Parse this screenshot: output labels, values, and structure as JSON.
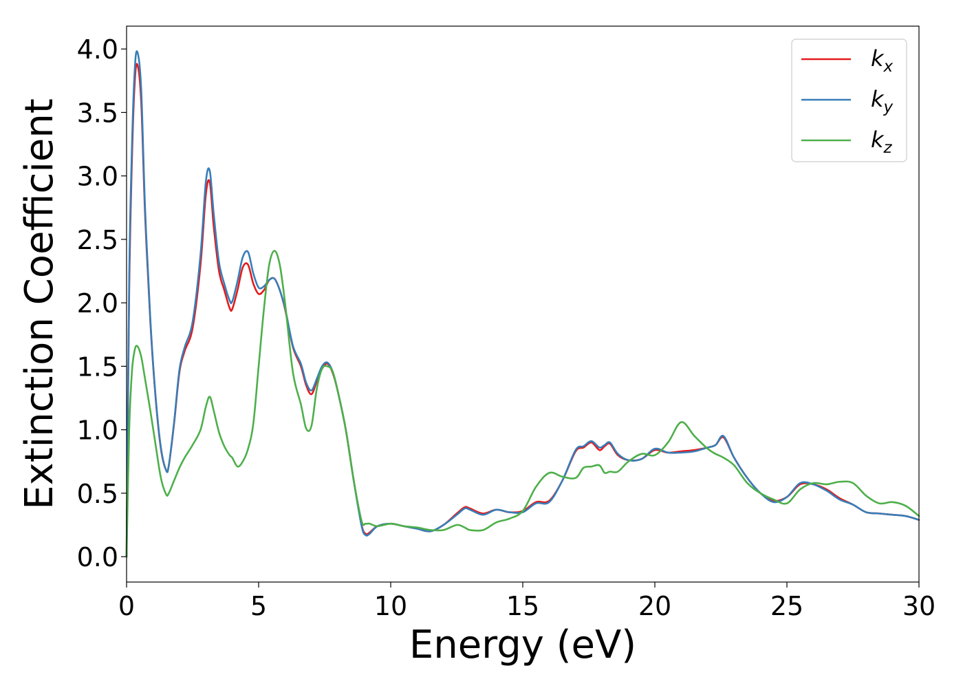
{
  "chart_data": {
    "type": "line",
    "title": "",
    "xlabel": "Energy (eV)",
    "ylabel": "Extinction Coefficient",
    "xlim": [
      0,
      30
    ],
    "ylim": [
      -0.2,
      4.18
    ],
    "xticks": [
      0,
      5,
      10,
      15,
      20,
      25,
      30
    ],
    "xtick_labels": [
      "0",
      "5",
      "10",
      "15",
      "20",
      "25",
      "30"
    ],
    "yticks": [
      0.0,
      0.5,
      1.0,
      1.5,
      2.0,
      2.5,
      3.0,
      3.5,
      4.0
    ],
    "ytick_labels": [
      "0.0",
      "0.5",
      "1.0",
      "1.5",
      "2.0",
      "2.5",
      "3.0",
      "3.5",
      "4.0"
    ],
    "grid": false,
    "legend_position": "top-right",
    "series": [
      {
        "name": "k",
        "subscript": "x",
        "color": "#e41a1c",
        "x": [
          0,
          0.1,
          0.2,
          0.3,
          0.4,
          0.55,
          0.7,
          0.9,
          1.1,
          1.3,
          1.5,
          1.6,
          1.8,
          2.0,
          2.2,
          2.5,
          2.8,
          3.0,
          3.15,
          3.3,
          3.5,
          3.7,
          3.9,
          4.0,
          4.2,
          4.4,
          4.6,
          4.8,
          5.0,
          5.2,
          5.4,
          5.6,
          5.8,
          6.0,
          6.3,
          6.6,
          6.8,
          7.0,
          7.2,
          7.4,
          7.6,
          7.8,
          8.0,
          8.3,
          8.6,
          8.9,
          9.05,
          9.2,
          9.5,
          10.0,
          10.5,
          11.0,
          11.5,
          12.0,
          12.5,
          12.8,
          13.0,
          13.5,
          14.0,
          14.5,
          15.0,
          15.5,
          16.0,
          16.5,
          17.0,
          17.3,
          17.6,
          17.9,
          18.1,
          18.3,
          18.6,
          19.0,
          19.5,
          20.0,
          20.5,
          21.0,
          21.5,
          22.0,
          22.3,
          22.6,
          23.0,
          23.5,
          24.0,
          24.5,
          25.0,
          25.5,
          26.0,
          26.5,
          27.0,
          27.5,
          28.0,
          28.5,
          29.0,
          29.5,
          30.0
        ],
        "y": [
          0.0,
          2.1,
          3.1,
          3.7,
          3.88,
          3.6,
          2.7,
          1.85,
          1.25,
          0.85,
          0.68,
          0.72,
          1.05,
          1.45,
          1.62,
          1.8,
          2.3,
          2.85,
          2.95,
          2.6,
          2.25,
          2.1,
          1.96,
          1.95,
          2.1,
          2.28,
          2.3,
          2.15,
          2.07,
          2.1,
          2.18,
          2.19,
          2.1,
          1.95,
          1.65,
          1.5,
          1.35,
          1.28,
          1.38,
          1.48,
          1.52,
          1.45,
          1.3,
          1.0,
          0.6,
          0.25,
          0.18,
          0.19,
          0.24,
          0.26,
          0.24,
          0.22,
          0.2,
          0.25,
          0.34,
          0.39,
          0.38,
          0.34,
          0.37,
          0.35,
          0.36,
          0.43,
          0.44,
          0.6,
          0.83,
          0.86,
          0.9,
          0.84,
          0.87,
          0.89,
          0.8,
          0.76,
          0.77,
          0.84,
          0.82,
          0.83,
          0.84,
          0.86,
          0.88,
          0.94,
          0.78,
          0.62,
          0.5,
          0.44,
          0.47,
          0.57,
          0.57,
          0.53,
          0.46,
          0.41,
          0.35,
          0.34,
          0.33,
          0.32,
          0.29
        ]
      },
      {
        "name": "k",
        "subscript": "y",
        "color": "#377eb8",
        "x": [
          0,
          0.1,
          0.2,
          0.3,
          0.4,
          0.55,
          0.7,
          0.9,
          1.1,
          1.3,
          1.5,
          1.6,
          1.8,
          2.0,
          2.2,
          2.5,
          2.8,
          3.0,
          3.15,
          3.3,
          3.5,
          3.7,
          3.9,
          4.0,
          4.2,
          4.4,
          4.6,
          4.8,
          5.0,
          5.2,
          5.4,
          5.6,
          5.8,
          6.0,
          6.3,
          6.6,
          6.8,
          7.0,
          7.2,
          7.4,
          7.6,
          7.8,
          8.0,
          8.3,
          8.6,
          8.9,
          9.05,
          9.2,
          9.5,
          10.0,
          10.5,
          11.0,
          11.5,
          12.0,
          12.5,
          12.8,
          13.0,
          13.5,
          14.0,
          14.5,
          15.0,
          15.5,
          16.0,
          16.5,
          17.0,
          17.3,
          17.6,
          17.9,
          18.1,
          18.3,
          18.6,
          19.0,
          19.5,
          20.0,
          20.5,
          21.0,
          21.5,
          22.0,
          22.3,
          22.6,
          23.0,
          23.5,
          24.0,
          24.5,
          25.0,
          25.5,
          26.0,
          26.5,
          27.0,
          27.5,
          28.0,
          28.5,
          29.0,
          29.5,
          30.0
        ],
        "y": [
          0.0,
          2.2,
          3.2,
          3.8,
          3.98,
          3.7,
          2.75,
          1.87,
          1.26,
          0.86,
          0.68,
          0.72,
          1.06,
          1.47,
          1.65,
          1.85,
          2.38,
          2.95,
          3.04,
          2.7,
          2.32,
          2.15,
          2.02,
          2.01,
          2.17,
          2.36,
          2.4,
          2.23,
          2.12,
          2.13,
          2.18,
          2.19,
          2.1,
          1.96,
          1.66,
          1.52,
          1.37,
          1.31,
          1.4,
          1.5,
          1.53,
          1.46,
          1.3,
          1.0,
          0.6,
          0.24,
          0.17,
          0.18,
          0.24,
          0.26,
          0.24,
          0.22,
          0.2,
          0.25,
          0.33,
          0.38,
          0.37,
          0.33,
          0.37,
          0.35,
          0.35,
          0.42,
          0.43,
          0.6,
          0.84,
          0.87,
          0.91,
          0.86,
          0.88,
          0.9,
          0.81,
          0.76,
          0.77,
          0.85,
          0.82,
          0.82,
          0.83,
          0.86,
          0.88,
          0.95,
          0.78,
          0.62,
          0.5,
          0.43,
          0.47,
          0.58,
          0.57,
          0.52,
          0.45,
          0.41,
          0.35,
          0.34,
          0.33,
          0.32,
          0.29
        ]
      },
      {
        "name": "k",
        "subscript": "z",
        "color": "#4daf4a",
        "x": [
          0,
          0.1,
          0.2,
          0.3,
          0.4,
          0.55,
          0.7,
          0.9,
          1.1,
          1.3,
          1.5,
          1.6,
          1.8,
          2.0,
          2.2,
          2.5,
          2.8,
          3.0,
          3.15,
          3.3,
          3.5,
          3.7,
          3.9,
          4.0,
          4.2,
          4.4,
          4.6,
          4.8,
          5.0,
          5.2,
          5.4,
          5.6,
          5.8,
          6.0,
          6.3,
          6.6,
          6.8,
          7.0,
          7.2,
          7.4,
          7.6,
          7.8,
          8.0,
          8.3,
          8.6,
          8.9,
          9.05,
          9.2,
          9.5,
          10.0,
          10.5,
          11.0,
          11.5,
          12.0,
          12.5,
          12.8,
          13.0,
          13.5,
          14.0,
          14.5,
          15.0,
          15.5,
          16.0,
          16.5,
          17.0,
          17.3,
          17.6,
          17.9,
          18.1,
          18.3,
          18.6,
          19.0,
          19.5,
          20.0,
          20.5,
          21.0,
          21.5,
          22.0,
          22.3,
          22.6,
          23.0,
          23.5,
          24.0,
          24.5,
          25.0,
          25.5,
          26.0,
          26.5,
          27.0,
          27.5,
          28.0,
          28.5,
          29.0,
          29.5,
          30.0
        ],
        "y": [
          0.0,
          1.0,
          1.45,
          1.62,
          1.66,
          1.58,
          1.4,
          1.15,
          0.88,
          0.62,
          0.49,
          0.5,
          0.6,
          0.7,
          0.78,
          0.88,
          1.0,
          1.18,
          1.26,
          1.15,
          0.98,
          0.87,
          0.8,
          0.78,
          0.71,
          0.75,
          0.85,
          1.05,
          1.5,
          1.95,
          2.3,
          2.41,
          2.3,
          2.0,
          1.45,
          1.2,
          1.01,
          1.03,
          1.32,
          1.48,
          1.5,
          1.46,
          1.3,
          1.0,
          0.6,
          0.28,
          0.26,
          0.26,
          0.24,
          0.26,
          0.24,
          0.23,
          0.21,
          0.21,
          0.25,
          0.23,
          0.21,
          0.21,
          0.27,
          0.3,
          0.36,
          0.55,
          0.66,
          0.63,
          0.62,
          0.7,
          0.71,
          0.72,
          0.66,
          0.67,
          0.67,
          0.75,
          0.81,
          0.8,
          0.9,
          1.06,
          0.95,
          0.85,
          0.81,
          0.78,
          0.72,
          0.58,
          0.5,
          0.45,
          0.42,
          0.53,
          0.58,
          0.57,
          0.59,
          0.58,
          0.48,
          0.42,
          0.43,
          0.4,
          0.32
        ]
      }
    ]
  }
}
